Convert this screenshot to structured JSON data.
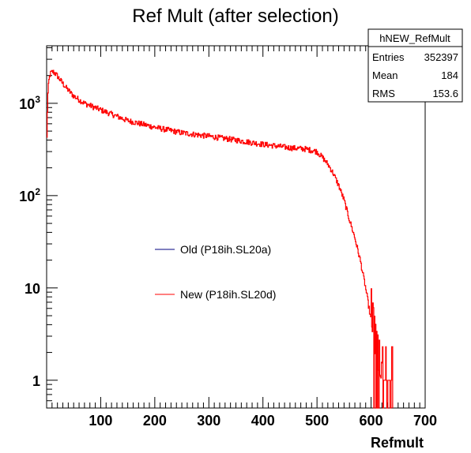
{
  "chart_data": {
    "type": "line",
    "title": "Ref Mult (after selection)",
    "xlabel": "Refmult",
    "ylabel": "",
    "xlim": [
      0,
      700
    ],
    "ylim": [
      0.5,
      4200
    ],
    "yscale": "log",
    "grid": false,
    "x_ticks": [
      {
        "value": 100,
        "label": "100"
      },
      {
        "value": 200,
        "label": "200"
      },
      {
        "value": 300,
        "label": "300"
      },
      {
        "value": 400,
        "label": "400"
      },
      {
        "value": 500,
        "label": "500"
      },
      {
        "value": 600,
        "label": "600"
      },
      {
        "value": 700,
        "label": "700"
      }
    ],
    "y_ticks": [
      {
        "value": 1,
        "base": "1",
        "exp": ""
      },
      {
        "value": 10,
        "base": "10",
        "exp": ""
      },
      {
        "value": 100,
        "base": "10",
        "exp": "2"
      },
      {
        "value": 1000,
        "base": "10",
        "exp": "3"
      }
    ],
    "series": [
      {
        "name": "Old (P18ih.SL20a)",
        "color": "#000080",
        "points": []
      },
      {
        "name": "New (P18ih.SL20d)",
        "color": "#ff0000",
        "points": [
          [
            0,
            300
          ],
          [
            2,
            1150
          ],
          [
            4,
            1700
          ],
          [
            6,
            2000
          ],
          [
            8,
            2150
          ],
          [
            12,
            2200
          ],
          [
            18,
            2050
          ],
          [
            25,
            1800
          ],
          [
            35,
            1500
          ],
          [
            50,
            1200
          ],
          [
            70,
            1000
          ],
          [
            100,
            850
          ],
          [
            150,
            650
          ],
          [
            200,
            550
          ],
          [
            250,
            480
          ],
          [
            300,
            440
          ],
          [
            350,
            400
          ],
          [
            400,
            360
          ],
          [
            450,
            330
          ],
          [
            480,
            320
          ],
          [
            500,
            300
          ],
          [
            510,
            260
          ],
          [
            520,
            220
          ],
          [
            530,
            175
          ],
          [
            540,
            130
          ],
          [
            550,
            90
          ],
          [
            560,
            55
          ],
          [
            570,
            35
          ],
          [
            580,
            20
          ],
          [
            590,
            10
          ],
          [
            600,
            4.5
          ],
          [
            605,
            2.5
          ],
          [
            610,
            1.5
          ],
          [
            615,
            1.2
          ],
          [
            620,
            1.0
          ],
          [
            625,
            1.0
          ],
          [
            630,
            1.0
          ],
          [
            640,
            1.0
          ]
        ]
      }
    ],
    "legend": {
      "placement": "center-left",
      "entries": [
        {
          "label": "Old (P18ih.SL20a)",
          "color": "#000080"
        },
        {
          "label": "New (P18ih.SL20d)",
          "color": "#ff0000"
        }
      ]
    },
    "stats_box": {
      "placement": "top-right",
      "title": "hNEW_RefMult",
      "rows": [
        {
          "label": "Entries",
          "value": "352397"
        },
        {
          "label": "Mean",
          "value": "184"
        },
        {
          "label": "RMS",
          "value": "153.6"
        }
      ]
    }
  }
}
